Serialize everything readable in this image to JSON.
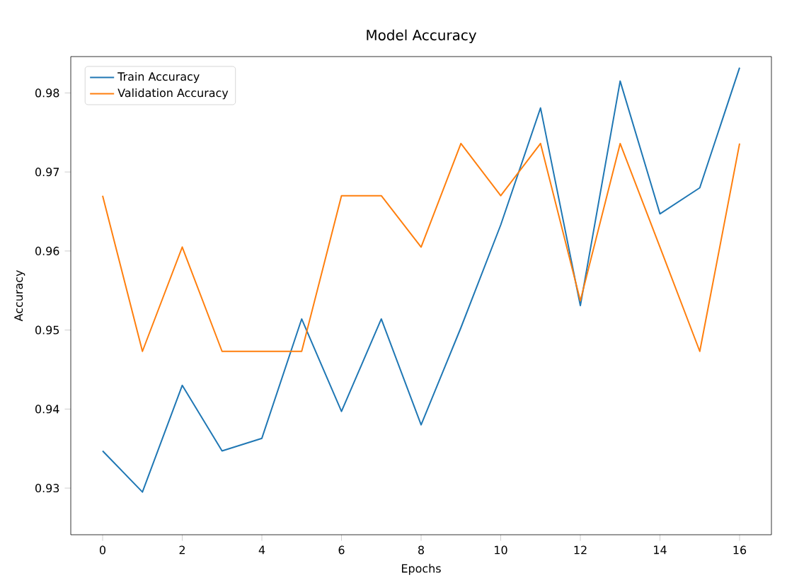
{
  "chart_data": {
    "type": "line",
    "title": "Model Accuracy",
    "xlabel": "Epochs",
    "ylabel": "Accuracy",
    "x": [
      0,
      1,
      2,
      3,
      4,
      5,
      6,
      7,
      8,
      9,
      10,
      11,
      12,
      13,
      14,
      15,
      16
    ],
    "series": [
      {
        "name": "Train Accuracy",
        "color": "#1f77b4",
        "values": [
          0.9347,
          0.9295,
          0.943,
          0.9347,
          0.9363,
          0.9514,
          0.9397,
          0.9514,
          0.938,
          0.9503,
          0.9633,
          0.9781,
          0.9531,
          0.9815,
          0.9647,
          0.968,
          0.9832
        ]
      },
      {
        "name": "Validation Accuracy",
        "color": "#ff7f0e",
        "values": [
          0.967,
          0.9473,
          0.9605,
          0.9473,
          0.9473,
          0.9473,
          0.967,
          0.967,
          0.9605,
          0.9736,
          0.967,
          0.9736,
          0.9537,
          0.9736,
          0.9605,
          0.9473,
          0.9736
        ]
      }
    ],
    "xlim": [
      -0.8,
      16.8
    ],
    "ylim": [
      0.9241,
      0.9846
    ],
    "xticks": [
      0,
      2,
      4,
      6,
      8,
      10,
      12,
      14,
      16
    ],
    "yticks": [
      0.93,
      0.94,
      0.95,
      0.96,
      0.97,
      0.98
    ],
    "legend": "top left",
    "grid": false
  }
}
